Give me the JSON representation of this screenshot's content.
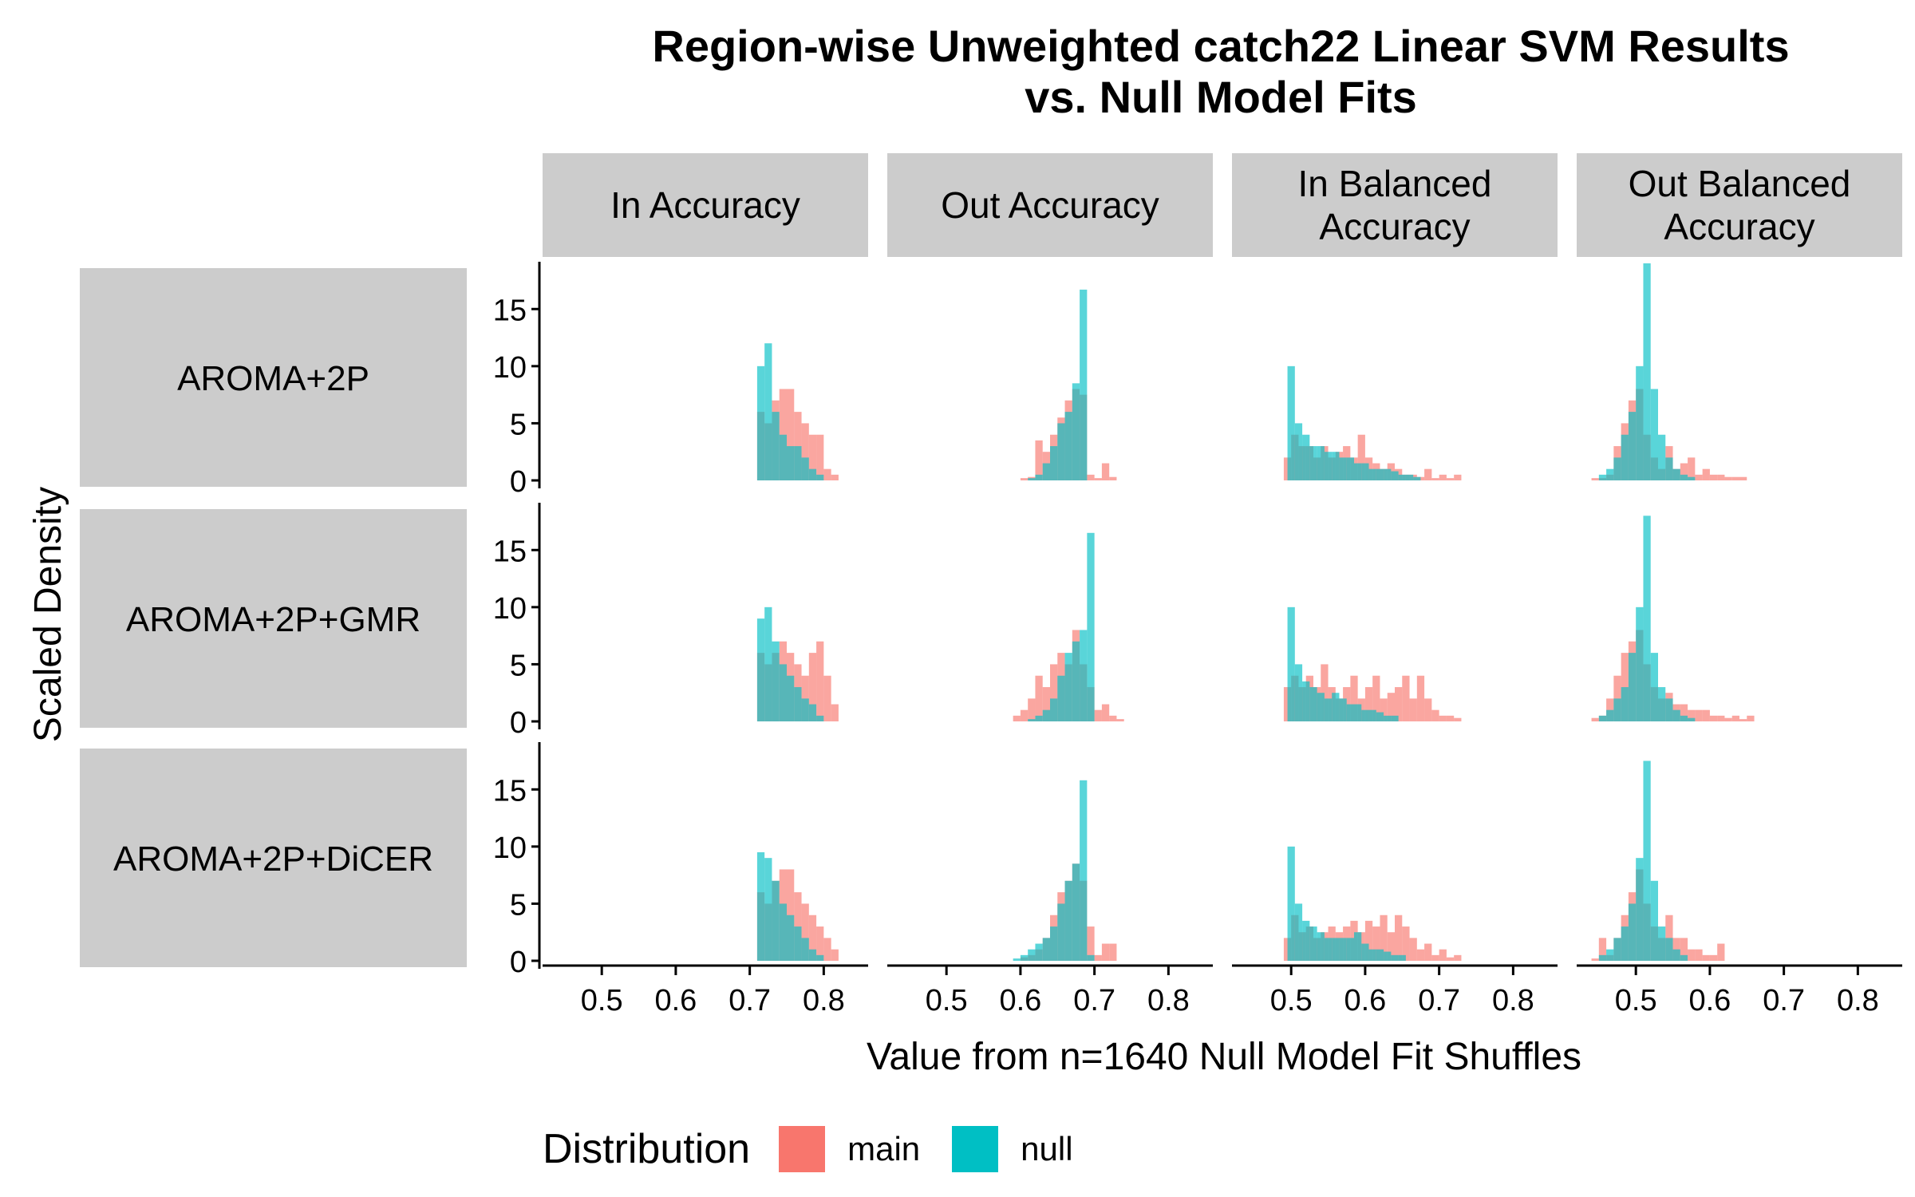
{
  "chart_data": {
    "type": "bar",
    "subtype": "faceted-overlapping-histogram",
    "title": [
      "Region-wise Unweighted catch22 Linear SVM Results",
      "vs. Null Model Fits"
    ],
    "xlabel": "Value from n=1640 Null Model Fit Shuffles",
    "ylabel": "Scaled Density",
    "xlim": [
      0.42,
      0.86
    ],
    "ylim": [
      0,
      19
    ],
    "x_ticks": [
      "0.5",
      "0.6",
      "0.7",
      "0.8"
    ],
    "y_ticks": [
      "0",
      "5",
      "10",
      "15"
    ],
    "bin_width": 0.01,
    "facet_columns": [
      "In Accuracy",
      "Out Accuracy",
      "In Balanced\nAccuracy",
      "Out Balanced\nAccuracy"
    ],
    "facet_rows": [
      "AROMA+2P",
      "AROMA+2P+GMR",
      "AROMA+2P+DiCER"
    ],
    "legend": {
      "title": "Distribution",
      "position": "bottom"
    },
    "series": [
      {
        "name": "main",
        "color": "#F8766D"
      },
      {
        "name": "null",
        "color": "#00BFC4"
      }
    ],
    "panels": [
      {
        "row": 0,
        "col": 0,
        "main": {
          "x0": 0.71,
          "values": [
            6,
            5,
            7,
            8,
            8,
            6,
            5,
            4,
            4,
            1,
            0.5
          ]
        },
        "null": {
          "x0": 0.71,
          "values": [
            10,
            12,
            6,
            4,
            3,
            3,
            2,
            1,
            0.5
          ]
        }
      },
      {
        "row": 0,
        "col": 1,
        "main": {
          "x0": 0.6,
          "values": [
            0.2,
            0.3,
            3.5,
            2.5,
            4,
            5.5,
            7,
            8,
            7.5,
            0.5,
            0.2,
            1.5,
            0.3
          ]
        },
        "null": {
          "x0": 0.6,
          "values": [
            0,
            0.2,
            0.5,
            1.5,
            3,
            5,
            6,
            8.5,
            16.7,
            0
          ]
        }
      },
      {
        "row": 0,
        "col": 2,
        "main": {
          "x0": 0.49,
          "values": [
            2,
            4,
            3,
            3,
            2,
            3,
            2,
            2.5,
            3,
            2,
            4,
            2,
            1.5,
            1,
            1.5,
            1,
            0.5,
            0.5,
            0.3,
            1,
            0.2,
            0.5,
            0.2,
            0.5
          ]
        },
        "null": {
          "x0": 0.495,
          "values": [
            10,
            5,
            4,
            3,
            3,
            2.5,
            2.5,
            2,
            2,
            1.5,
            1.5,
            1,
            1,
            1,
            0.8,
            0.5,
            0.5,
            0.3
          ]
        }
      },
      {
        "row": 0,
        "col": 3,
        "main": {
          "x0": 0.44,
          "values": [
            0.2,
            0.2,
            0.5,
            3,
            5,
            7,
            8,
            4,
            2,
            1,
            3,
            1,
            1.5,
            2,
            0.5,
            1,
            0.5,
            0.5,
            0.3,
            0.3,
            0.3
          ]
        },
        "null": {
          "x0": 0.44,
          "values": [
            0,
            0.5,
            1,
            2,
            4,
            6,
            10,
            19,
            8,
            4,
            2,
            1,
            0.5,
            0.3
          ]
        }
      },
      {
        "row": 1,
        "col": 0,
        "main": {
          "x0": 0.71,
          "values": [
            6,
            5,
            6,
            7,
            6,
            5,
            4,
            6,
            7,
            4,
            1.5
          ]
        },
        "null": {
          "x0": 0.71,
          "values": [
            9,
            10,
            7,
            5,
            4,
            3,
            2,
            1.5,
            0.5
          ]
        }
      },
      {
        "row": 1,
        "col": 1,
        "main": {
          "x0": 0.59,
          "values": [
            0.5,
            1,
            2,
            4,
            3,
            5,
            6,
            5,
            8,
            5,
            3,
            1,
            1.5,
            0.5,
            0.2
          ]
        },
        "null": {
          "x0": 0.61,
          "values": [
            0.2,
            0.5,
            1,
            2,
            4,
            6,
            7,
            8,
            16.5,
            0
          ]
        }
      },
      {
        "row": 1,
        "col": 2,
        "main": {
          "x0": 0.49,
          "values": [
            3,
            4,
            3,
            4,
            3,
            5,
            3,
            2,
            3,
            4,
            2,
            3,
            4,
            2,
            2.5,
            3,
            4,
            2,
            4,
            2,
            1,
            0.5,
            0.5,
            0.3
          ]
        },
        "null": {
          "x0": 0.495,
          "values": [
            10,
            5,
            3.5,
            3,
            2.5,
            2,
            2.5,
            2,
            1.5,
            1.5,
            1,
            1,
            0.8,
            0.5,
            0.5
          ]
        }
      },
      {
        "row": 1,
        "col": 3,
        "main": {
          "x0": 0.44,
          "values": [
            0.3,
            0.5,
            2,
            4,
            6,
            7,
            8,
            5,
            3,
            2,
            2.5,
            1.5,
            1.5,
            1,
            1,
            1,
            0.5,
            0.5,
            0.3,
            0.5,
            0.2,
            0.5
          ]
        },
        "null": {
          "x0": 0.44,
          "values": [
            0,
            0.5,
            1,
            2,
            3,
            6,
            10,
            18,
            6,
            3,
            2,
            1,
            0.5,
            0.3
          ]
        }
      },
      {
        "row": 2,
        "col": 0,
        "main": {
          "x0": 0.71,
          "values": [
            6,
            5,
            7,
            8,
            8,
            6,
            5,
            4,
            3,
            2,
            1
          ]
        },
        "null": {
          "x0": 0.71,
          "values": [
            9.5,
            9,
            7,
            5,
            4,
            3,
            2,
            1,
            0.5
          ]
        }
      },
      {
        "row": 2,
        "col": 1,
        "main": {
          "x0": 0.6,
          "values": [
            0.3,
            0.5,
            1,
            2,
            4,
            6,
            7,
            8.5,
            7,
            3,
            0.5,
            1.5,
            1.5
          ]
        },
        "null": {
          "x0": 0.59,
          "values": [
            0.2,
            0.5,
            1,
            1.5,
            2,
            3,
            5,
            7,
            8.5,
            15.8,
            0.5
          ]
        }
      },
      {
        "row": 2,
        "col": 2,
        "main": {
          "x0": 0.49,
          "values": [
            2,
            4,
            2.5,
            3,
            2,
            2.5,
            3,
            2.5,
            3,
            3.5,
            2.5,
            3.5,
            3,
            4,
            2.5,
            4,
            3,
            2,
            1,
            1.5,
            0.5,
            1,
            0.3,
            0.5
          ]
        },
        "null": {
          "x0": 0.495,
          "values": [
            10,
            5,
            3.5,
            3,
            2.5,
            2,
            2,
            2,
            2,
            2.5,
            1.5,
            1,
            1,
            0.8,
            0.5,
            0.5
          ]
        }
      },
      {
        "row": 2,
        "col": 3,
        "main": {
          "x0": 0.44,
          "values": [
            0.2,
            2,
            0.5,
            2,
            4,
            6,
            8,
            5,
            3,
            2,
            4,
            2,
            2,
            1,
            1,
            0.5,
            0.5,
            1.5
          ]
        },
        "null": {
          "x0": 0.44,
          "values": [
            0,
            0.5,
            1,
            2,
            3,
            5,
            9,
            17.5,
            7,
            3,
            2,
            1,
            0.5
          ]
        }
      }
    ]
  }
}
